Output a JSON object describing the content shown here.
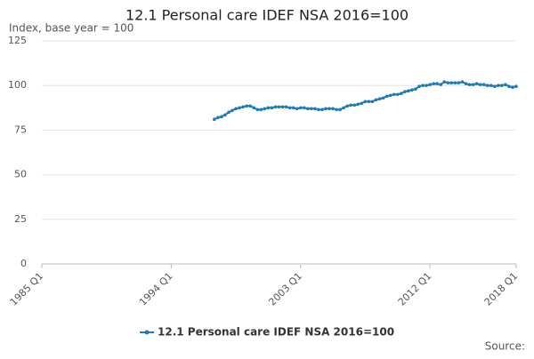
{
  "chart_data": {
    "type": "line",
    "title": "12.1 Personal care IDEF NSA 2016=100",
    "y_label": "Index, base year = 100",
    "source": "Source:",
    "x": [
      "1997 Q1",
      "1997 Q2",
      "1997 Q3",
      "1997 Q4",
      "1998 Q1",
      "1998 Q2",
      "1998 Q3",
      "1998 Q4",
      "1999 Q1",
      "1999 Q2",
      "1999 Q3",
      "1999 Q4",
      "2000 Q1",
      "2000 Q2",
      "2000 Q3",
      "2000 Q4",
      "2001 Q1",
      "2001 Q2",
      "2001 Q3",
      "2001 Q4",
      "2002 Q1",
      "2002 Q2",
      "2002 Q3",
      "2002 Q4",
      "2003 Q1",
      "2003 Q2",
      "2003 Q3",
      "2003 Q4",
      "2004 Q1",
      "2004 Q2",
      "2004 Q3",
      "2004 Q4",
      "2005 Q1",
      "2005 Q2",
      "2005 Q3",
      "2005 Q4",
      "2006 Q1",
      "2006 Q2",
      "2006 Q3",
      "2006 Q4",
      "2007 Q1",
      "2007 Q2",
      "2007 Q3",
      "2007 Q4",
      "2008 Q1",
      "2008 Q2",
      "2008 Q3",
      "2008 Q4",
      "2009 Q1",
      "2009 Q2",
      "2009 Q3",
      "2009 Q4",
      "2010 Q1",
      "2010 Q2",
      "2010 Q3",
      "2010 Q4",
      "2011 Q1",
      "2011 Q2",
      "2011 Q3",
      "2011 Q4",
      "2012 Q1",
      "2012 Q2",
      "2012 Q3",
      "2012 Q4",
      "2013 Q1",
      "2013 Q2",
      "2013 Q3",
      "2013 Q4",
      "2014 Q1",
      "2014 Q2",
      "2014 Q3",
      "2014 Q4",
      "2015 Q1",
      "2015 Q2",
      "2015 Q3",
      "2015 Q4",
      "2016 Q1",
      "2016 Q2",
      "2016 Q3",
      "2016 Q4",
      "2017 Q1",
      "2017 Q2",
      "2017 Q3",
      "2017 Q4",
      "2018 Q1"
    ],
    "series": [
      {
        "name": "12.1 Personal care IDEF NSA 2016=100",
        "color": "#1f7bb6",
        "values": [
          81,
          82,
          82.5,
          83.5,
          85,
          86,
          87,
          87.5,
          88,
          88.5,
          88.5,
          87.5,
          86.5,
          86.5,
          87,
          87.5,
          87.5,
          88,
          88,
          88,
          88,
          87.5,
          87.5,
          87,
          87.5,
          87.5,
          87,
          87,
          87,
          86.5,
          86.5,
          87,
          87,
          87,
          86.5,
          86.5,
          87.5,
          88.5,
          89,
          89,
          89.5,
          90,
          91,
          91,
          91,
          92,
          92.5,
          93,
          94,
          94.5,
          95,
          95,
          95.5,
          96.5,
          97,
          97.5,
          98,
          99.5,
          100,
          100,
          100.5,
          101,
          101,
          100.5,
          102,
          101.5,
          101.5,
          101.5,
          101.5,
          102,
          101,
          100.5,
          100.5,
          101,
          100.5,
          100.5,
          100,
          100,
          99.5,
          100,
          100,
          100.5,
          99.5,
          99,
          99.5
        ]
      }
    ],
    "xlim": [
      "1985 Q1",
      "2018 Q1"
    ],
    "xticks": [
      "1985 Q1",
      "1994 Q1",
      "2003 Q1",
      "2012 Q1",
      "2018 Q1"
    ],
    "ylim": [
      0,
      125
    ],
    "yticks": [
      0,
      25,
      50,
      75,
      100,
      125
    ],
    "grid": true
  }
}
